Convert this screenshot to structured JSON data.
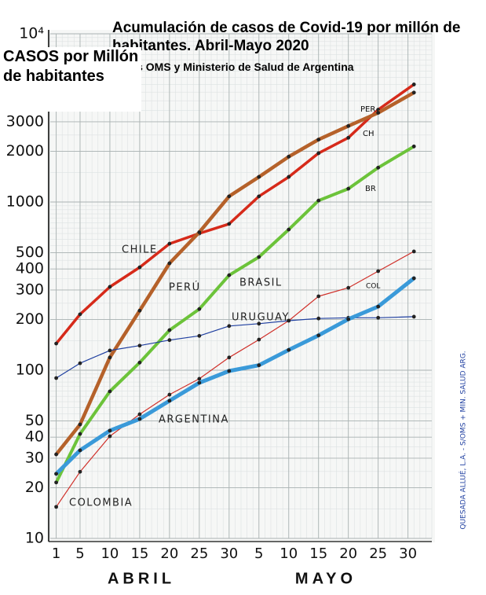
{
  "chart_data": {
    "type": "line",
    "title": "Acumulación de casos de Covid-19 por millón de habitantes. Abril-Mayo 2020",
    "subtitle": "Datos OMS y Ministerio de Salud de Argentina",
    "y_label": "CASOS por Millón de habitantes",
    "log_y": true,
    "grid": true,
    "x": [
      1,
      5,
      10,
      15,
      20,
      25,
      30,
      35,
      40,
      45,
      50,
      55,
      61
    ],
    "xlim": [
      0,
      64
    ],
    "xticks": [
      1,
      5,
      10,
      15,
      20,
      25,
      30,
      {
        "value": 35,
        "label": "5"
      },
      {
        "value": 40,
        "label": "10"
      },
      {
        "value": 45,
        "label": "15"
      },
      {
        "value": 50,
        "label": "20"
      },
      {
        "value": 55,
        "label": "25"
      },
      {
        "value": 60,
        "label": "30"
      }
    ],
    "ylim": [
      10,
      10000
    ],
    "yticks": [
      10,
      20,
      30,
      40,
      50,
      100,
      200,
      300,
      400,
      500,
      1000,
      2000,
      3000,
      {
        "value": 10000,
        "label": "10⁴"
      }
    ],
    "series": [
      {
        "name": "CHILE",
        "color": "#d62a1a",
        "values": [
          144,
          215,
          313,
          409,
          565,
          650,
          741,
          1080,
          1410,
          1950,
          2410,
          3540,
          5000
        ]
      },
      {
        "name": "PERÚ",
        "color": "#b5612a",
        "values": [
          31.6,
          47.6,
          119,
          226,
          432,
          661,
          1080,
          1410,
          1860,
          2350,
          2830,
          3390,
          4470
        ]
      },
      {
        "name": "BRASIL",
        "color": "#6cc33a",
        "values": [
          21.5,
          41.8,
          74.8,
          111,
          173,
          231,
          367,
          471,
          686,
          1020,
          1200,
          1600,
          2140
        ]
      },
      {
        "name": "URUGUAY",
        "color": "#1f3fa0",
        "values": [
          89.8,
          110,
          131,
          140,
          151,
          160,
          183,
          189,
          197,
          203,
          205,
          205,
          208
        ]
      },
      {
        "name": "COLOMBIA",
        "color": "#d0302a",
        "values": [
          15.4,
          24.9,
          40.5,
          54.7,
          71.6,
          88.9,
          119,
          152,
          197,
          275,
          309,
          388,
          508
        ]
      },
      {
        "name": "ARGENTINA",
        "color": "#3a9ad9",
        "values": [
          24.2,
          33.4,
          43.7,
          51.3,
          65.8,
          84.2,
          98.9,
          107,
          132,
          161,
          201,
          239,
          352
        ]
      }
    ],
    "annotations": [
      "PER",
      "CH",
      "BR",
      "COL",
      "ABRIL",
      "MAYO",
      "QUESADA ALLUÉ, L.A. - S/OMS + MIN. SALUD ARG."
    ]
  }
}
